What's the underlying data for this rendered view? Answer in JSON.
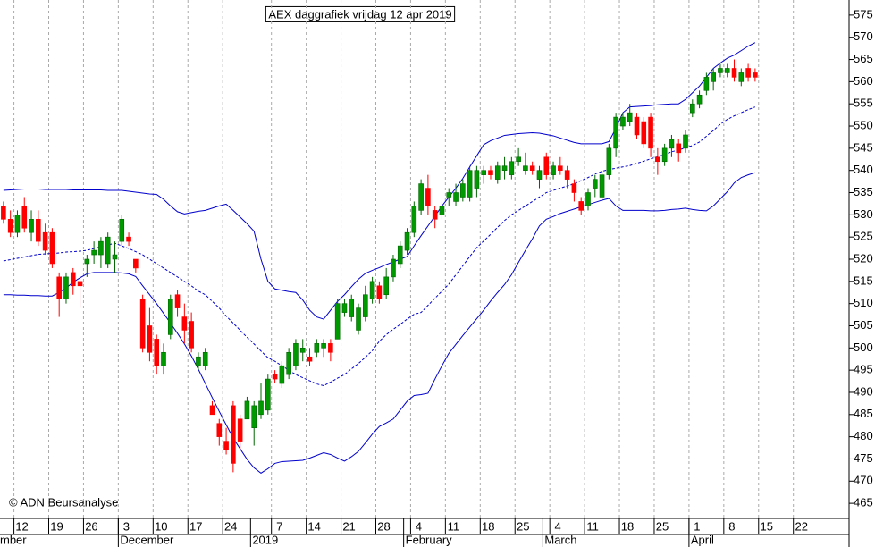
{
  "chart_data": {
    "type": "candlestick",
    "title": "AEX daggrafiek vrijdag 12 apr 2019",
    "annotation": "© ADN Beursanalyse",
    "categories": [
      null,
      null,
      "12",
      null,
      null,
      null,
      null,
      "19",
      null,
      null,
      null,
      null,
      "26",
      null,
      null,
      null,
      null,
      "3",
      null,
      null,
      null,
      null,
      "10",
      null,
      null,
      null,
      null,
      "17",
      null,
      null,
      null,
      null,
      "24",
      null,
      null,
      null,
      null,
      null,
      null,
      "7",
      null,
      null,
      null,
      null,
      "14",
      null,
      null,
      null,
      null,
      "21",
      null,
      null,
      null,
      null,
      "28",
      null,
      null,
      null,
      null,
      "4",
      null,
      null,
      null,
      null,
      "11",
      null,
      null,
      null,
      null,
      "18",
      null,
      null,
      null,
      null,
      "25",
      null,
      null,
      null,
      null,
      "4",
      null,
      null,
      null,
      null,
      "11",
      null,
      null,
      null,
      null,
      "18",
      null,
      null,
      null,
      null,
      "25",
      null,
      null,
      null,
      null,
      "1",
      null,
      null,
      null,
      null,
      "8",
      null,
      null,
      null,
      null,
      "15",
      null,
      null,
      null,
      null,
      "22",
      null,
      null,
      null,
      null,
      null,
      null,
      null
    ],
    "months": [
      "mber",
      null,
      null,
      null,
      null,
      null,
      null,
      null,
      null,
      null,
      null,
      null,
      null,
      null,
      null,
      null,
      null,
      "December",
      null,
      null,
      null,
      null,
      null,
      null,
      null,
      null,
      null,
      null,
      null,
      null,
      null,
      null,
      null,
      null,
      null,
      null,
      "2019",
      null,
      null,
      null,
      null,
      null,
      null,
      null,
      null,
      null,
      null,
      null,
      null,
      null,
      null,
      null,
      null,
      null,
      null,
      null,
      null,
      null,
      "February",
      null,
      null,
      null,
      null,
      null,
      null,
      null,
      null,
      null,
      null,
      null,
      null,
      null,
      null,
      null,
      null,
      null,
      null,
      null,
      "March",
      null,
      null,
      null,
      null,
      null,
      null,
      null,
      null,
      null,
      null,
      null,
      null,
      null,
      null,
      null,
      null,
      null,
      null,
      null,
      null,
      "April",
      null,
      null,
      null,
      null,
      null,
      null,
      null,
      null,
      null,
      null,
      null,
      null,
      null,
      null,
      null,
      null,
      null,
      null,
      null,
      null,
      null,
      null
    ],
    "open": [
      532,
      529,
      526,
      532,
      526,
      529,
      526,
      526,
      516,
      511,
      517,
      515,
      519,
      521,
      521,
      519,
      520,
      524,
      525,
      520,
      511,
      505,
      502,
      496,
      503,
      512,
      507,
      506,
      496,
      496,
      487,
      483,
      479,
      487,
      484,
      484,
      482,
      485,
      486,
      494,
      492,
      494,
      496,
      499,
      498,
      499,
      500,
      501,
      502,
      508,
      507,
      504,
      507,
      511,
      514,
      512,
      516,
      519,
      522,
      526,
      531,
      536,
      531,
      530,
      534,
      533,
      534,
      534,
      536,
      539,
      540,
      538,
      540,
      539,
      542,
      540,
      541,
      538,
      543,
      539,
      541,
      540,
      537,
      533,
      532,
      536,
      534,
      539,
      545,
      550,
      551,
      552,
      551,
      552,
      543,
      542,
      545,
      546,
      545,
      553,
      555,
      558,
      560,
      562,
      562,
      563,
      560,
      563,
      562,
      null,
      null,
      null,
      null,
      null,
      null,
      null,
      null,
      null,
      null,
      null,
      null,
      null
    ],
    "high": [
      533,
      531,
      531,
      534,
      531,
      531,
      528,
      527,
      517,
      517,
      518,
      516,
      521,
      524,
      525,
      526,
      524,
      530,
      526,
      520,
      512,
      509,
      503,
      501,
      512,
      513,
      510,
      508,
      499,
      500,
      488,
      484,
      482,
      488,
      485,
      489,
      488,
      492,
      494,
      495,
      497,
      500,
      502,
      502,
      500,
      502,
      502,
      502,
      511,
      511,
      512,
      510,
      514,
      516,
      515,
      518,
      521,
      524,
      527,
      533,
      538,
      539,
      532,
      533,
      536,
      537,
      538,
      541,
      541,
      541,
      541,
      542,
      543,
      543,
      545,
      544,
      542,
      541,
      544,
      542,
      543,
      541,
      538,
      534,
      536,
      539,
      540,
      546,
      553,
      553,
      555,
      553,
      552,
      553,
      545,
      546,
      548,
      547,
      549,
      556,
      558,
      562,
      563,
      564,
      564,
      565,
      563,
      564,
      563,
      null,
      null,
      null,
      null,
      null,
      null,
      null,
      null,
      null,
      null,
      null,
      null,
      null
    ],
    "low": [
      528,
      525,
      525,
      526,
      524,
      523,
      521,
      518,
      507,
      510,
      512,
      509,
      516,
      519,
      518,
      518,
      517,
      523,
      523,
      517,
      499,
      497,
      494,
      494,
      502,
      507,
      501,
      499,
      495,
      495,
      485,
      478,
      476,
      472,
      477,
      484,
      478,
      484,
      485,
      492,
      491,
      493,
      495,
      497,
      496,
      498,
      498,
      497,
      502,
      507,
      506,
      503,
      506,
      510,
      510,
      511,
      515,
      518,
      521,
      525,
      530,
      530,
      527,
      529,
      532,
      532,
      533,
      533,
      534,
      537,
      538,
      537,
      538,
      538,
      541,
      539,
      539,
      536,
      538,
      538,
      539,
      536,
      533,
      530,
      531,
      534,
      533,
      538,
      543,
      549,
      550,
      547,
      545,
      543,
      539,
      541,
      543,
      542,
      544,
      552,
      554,
      557,
      558,
      561,
      561,
      560,
      559,
      560,
      560,
      null,
      null,
      null,
      null,
      null,
      null,
      null,
      null,
      null,
      null,
      null,
      null,
      null
    ],
    "close": [
      529,
      526,
      530,
      527,
      529,
      524,
      522,
      519,
      511,
      516,
      514,
      514,
      520,
      522,
      524,
      525,
      521,
      529,
      524,
      518,
      500,
      499,
      496,
      499,
      511,
      509,
      504,
      500,
      498,
      499,
      485,
      480,
      477,
      474,
      479,
      488,
      487,
      488,
      493,
      493,
      496,
      499,
      501,
      500,
      497,
      501,
      501,
      499,
      510,
      510,
      511,
      509,
      512,
      515,
      511,
      516,
      520,
      523,
      526,
      532,
      537,
      532,
      529,
      532,
      535,
      535,
      537,
      540,
      540,
      540,
      539,
      541,
      541,
      542,
      543,
      541,
      540,
      540,
      539,
      541,
      540,
      538,
      535,
      531,
      535,
      538,
      539,
      545,
      552,
      552,
      553,
      548,
      546,
      545,
      542,
      545,
      547,
      544,
      548,
      555,
      557,
      561,
      562,
      563,
      563,
      561,
      562,
      561,
      561,
      null,
      null,
      null,
      null,
      null,
      null,
      null,
      null,
      null,
      null,
      null,
      null,
      null
    ],
    "up_color": "#009900",
    "down_color": "#ff0000",
    "bands": [
      {
        "color": "#0000cc",
        "dashed": false,
        "values": [
          535.5,
          535.6,
          535.7,
          535.8,
          535.8,
          535.8,
          535.7,
          535.7,
          535.7,
          535.7,
          535.6,
          535.6,
          535.6,
          535.6,
          535.6,
          535.5,
          535.5,
          535.5,
          535.3,
          535.1,
          534.9,
          534.7,
          534.6,
          533.5,
          532,
          530.7,
          530.2,
          530.5,
          530.8,
          531,
          531.5,
          532,
          532.4,
          531,
          529.5,
          528,
          526.3,
          520,
          515,
          513.3,
          513,
          512.7,
          512.5,
          510.8,
          508.5,
          507,
          506.5,
          508.5,
          510.5,
          512,
          513.8,
          515.5,
          516.8,
          517.5,
          518.1,
          518.8,
          519.4,
          520,
          520.6,
          523,
          525.3,
          527.5,
          529.7,
          532,
          534,
          536,
          538.2,
          540.8,
          543.3,
          545.8,
          546.7,
          547.3,
          547.9,
          548.1,
          548.3,
          548.4,
          548.5,
          548.4,
          548.1,
          547.8,
          547.3,
          546.8,
          546.3,
          546,
          546,
          546,
          546,
          546.5,
          549.5,
          553,
          554.3,
          554.4,
          554.5,
          554.6,
          554.8,
          554.9,
          555,
          555,
          556,
          557.5,
          559,
          561,
          563,
          564.2,
          565.3,
          566,
          567,
          568,
          568.8,
          null,
          null,
          null,
          null,
          null,
          null,
          null,
          null,
          null,
          null,
          null,
          null,
          null
        ]
      },
      {
        "color": "#0000cc",
        "dashed": true,
        "values": [
          519.6,
          519.9,
          520.2,
          520.5,
          520.8,
          521.1,
          521.2,
          521.3,
          521.4,
          521.6,
          521.7,
          521.8,
          522,
          522.4,
          522.8,
          523.2,
          523.6,
          523,
          522.4,
          521.7,
          521,
          520,
          519,
          518,
          517,
          516,
          515,
          514,
          512.8,
          512,
          510.5,
          509,
          507.2,
          505.6,
          504,
          502.4,
          500.9,
          499.3,
          497.8,
          497,
          496,
          495,
          494,
          493.3,
          492.6,
          491.9,
          491.5,
          492.3,
          493.2,
          494,
          495.3,
          496.5,
          497.9,
          499.4,
          501.5,
          503,
          504.2,
          505.3,
          506.5,
          507.6,
          508,
          509.6,
          511.2,
          512.8,
          514.4,
          516.5,
          518.5,
          520.6,
          522.6,
          524.1,
          525.6,
          527.2,
          528.7,
          530,
          531,
          532,
          533,
          534,
          535,
          535.5,
          536,
          536.5,
          537,
          537.7,
          538.4,
          539.2,
          539.8,
          540.2,
          540.5,
          540.8,
          541.1,
          541.6,
          542.1,
          542.6,
          543.1,
          543.6,
          544.2,
          544.6,
          545.1,
          545.6,
          546.4,
          547.7,
          549,
          550.4,
          551.5,
          552.3,
          553,
          553.7,
          554.3,
          null,
          null,
          null,
          null,
          null,
          null,
          null,
          null,
          null,
          null,
          null,
          null,
          null
        ]
      },
      {
        "color": "#0000cc",
        "dashed": false,
        "values": [
          512,
          512,
          511.9,
          511.9,
          511.8,
          511.8,
          511.7,
          511.7,
          512.5,
          513.5,
          514.8,
          515.8,
          516.7,
          517,
          517,
          517,
          517,
          516.9,
          516.7,
          516.1,
          514,
          512,
          510,
          507.8,
          505.6,
          503.3,
          500.9,
          498.2,
          495.2,
          492,
          488.8,
          485.7,
          482.7,
          479.7,
          477.3,
          474.9,
          473,
          471.8,
          472.8,
          474,
          474.4,
          474.5,
          474.6,
          474.7,
          475.2,
          475.8,
          476.4,
          476,
          475.2,
          474.5,
          475.5,
          476.7,
          478.6,
          480.6,
          482.3,
          483.1,
          484,
          486,
          488,
          489.3,
          489.5,
          489.8,
          493,
          496,
          498.8,
          500.8,
          502.8,
          504.7,
          506.6,
          508.5,
          510.6,
          512.5,
          514.3,
          516.5,
          519.3,
          522,
          524.6,
          527.5,
          529,
          529.6,
          530.3,
          530.8,
          531.3,
          531.8,
          532.3,
          532.8,
          533.3,
          533.7,
          532,
          531,
          531,
          531,
          531,
          530.9,
          530.9,
          531,
          531.2,
          531.3,
          531.5,
          531.2,
          531,
          530.9,
          532,
          533.6,
          535.2,
          537.2,
          538.4,
          539,
          539.5,
          null,
          null,
          null,
          null,
          null,
          null,
          null,
          null,
          null,
          null,
          null,
          null,
          null
        ]
      }
    ],
    "ylim": [
      461.6,
      578.4
    ],
    "yticks": [
      465,
      470,
      475,
      480,
      485,
      490,
      495,
      500,
      505,
      510,
      515,
      520,
      525,
      530,
      535,
      540,
      545,
      550,
      555,
      560,
      565,
      570,
      575
    ],
    "grid": "x"
  }
}
